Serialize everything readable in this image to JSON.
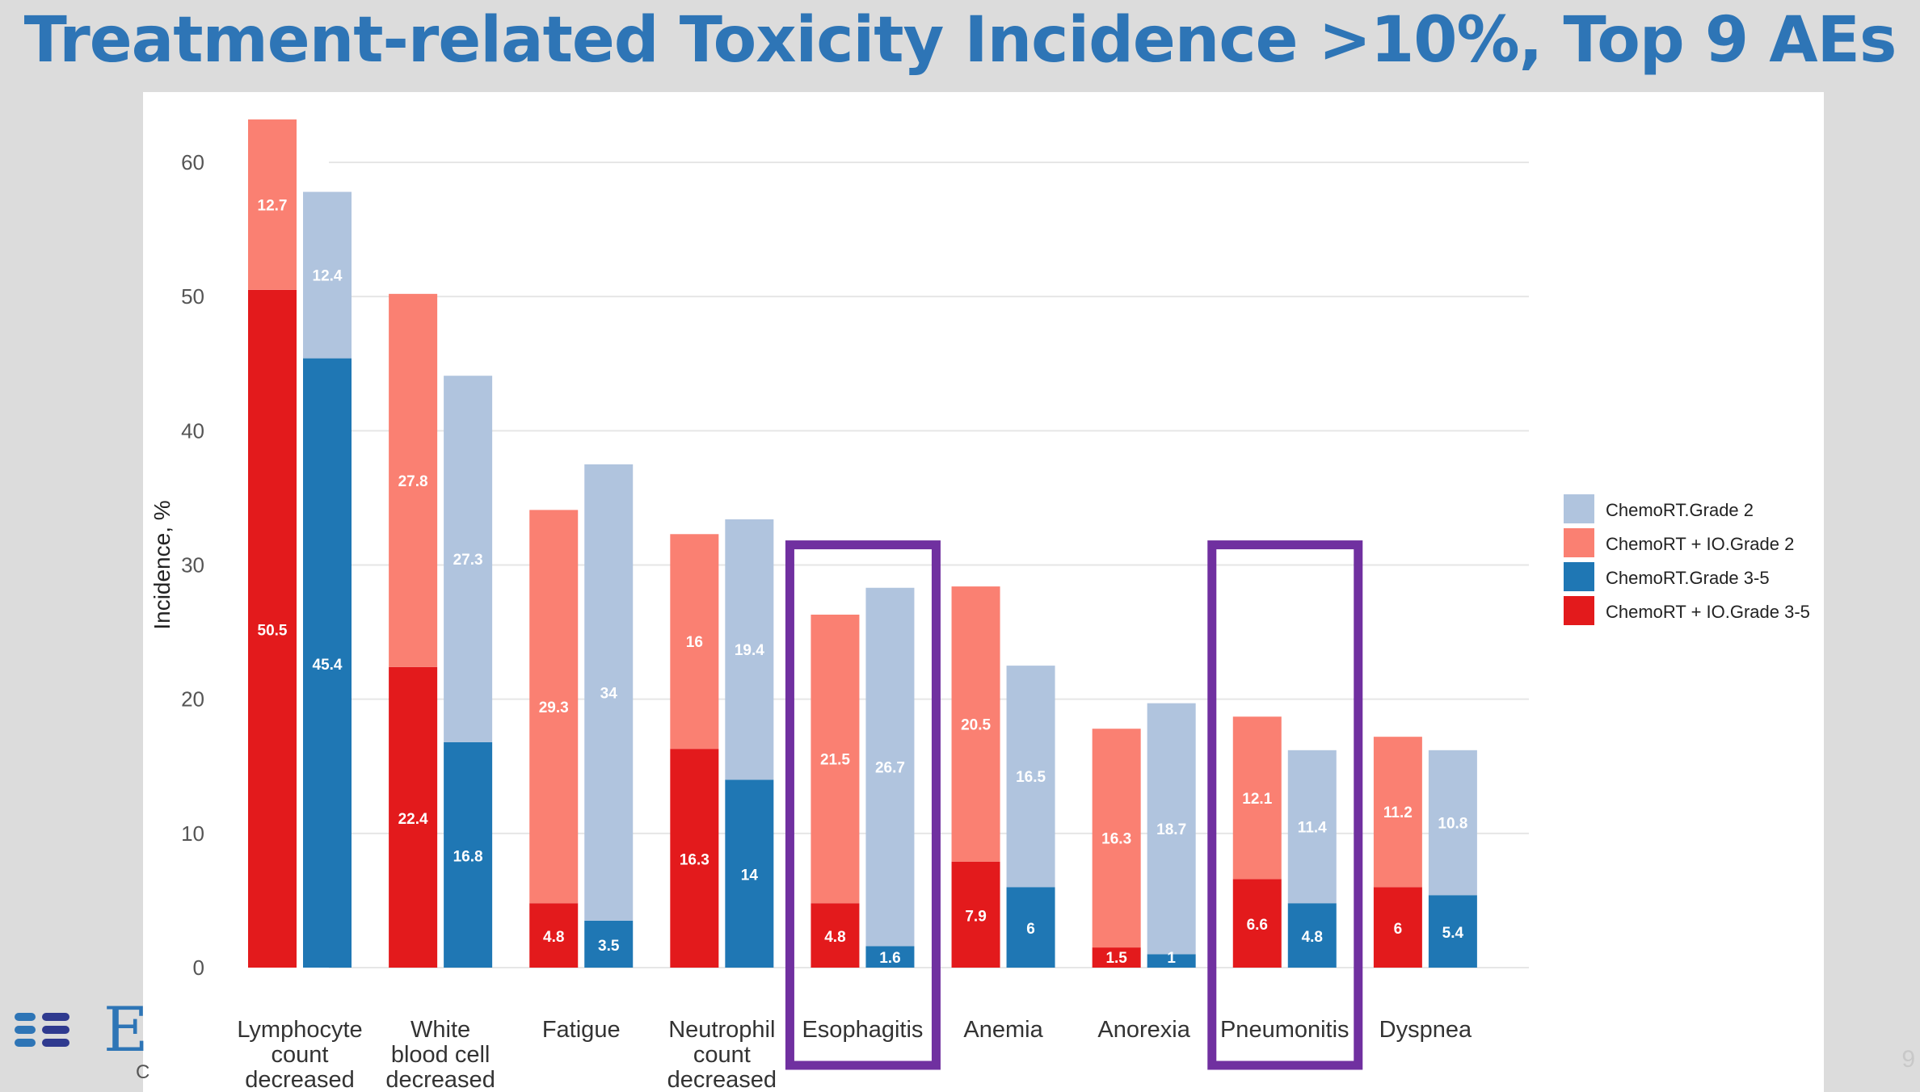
{
  "slide": {
    "title": "Treatment-related Toxicity Incidence >10%, Top 9 AEs",
    "page_number": "9",
    "logo_letter": "E",
    "logo_fragment": "C",
    "colors": {
      "title": "#2e75b6",
      "highlight_box": "#7030a0",
      "logo_bar_light": "#2e75b6",
      "logo_bar_dark": "#2f3a8f"
    }
  },
  "chart_data": {
    "type": "bar",
    "stacked": true,
    "title": "",
    "xlabel": "",
    "ylabel": "Incidence, %",
    "ylim": [
      0,
      65
    ],
    "yticks": [
      0,
      10,
      20,
      30,
      40,
      50,
      60
    ],
    "grid": true,
    "legend_position": "right",
    "categories": [
      "Lymphocyte count decreased",
      "White blood cell decreased",
      "Fatigue",
      "Neutrophil count decreased",
      "Esophagitis",
      "Anemia",
      "Anorexia",
      "Pneumonitis",
      "Dyspnea"
    ],
    "category_label_lines": [
      [
        "Lymphocyte",
        "count",
        "decreased"
      ],
      [
        "White",
        "blood cell",
        "decreased"
      ],
      [
        "Fatigue"
      ],
      [
        "Neutrophil",
        "count",
        "decreased"
      ],
      [
        "Esophagitis"
      ],
      [
        "Anemia"
      ],
      [
        "Anorexia"
      ],
      [
        "Pneumonitis"
      ],
      [
        "Dyspnea"
      ]
    ],
    "highlighted_categories": [
      "Esophagitis",
      "Pneumonitis"
    ],
    "legend": [
      {
        "name": "ChemoRT.Grade 2",
        "color": "#b0c4de"
      },
      {
        "name": "ChemoRT + IO.Grade 2",
        "color": "#fa8072"
      },
      {
        "name": "ChemoRT.Grade 3-5",
        "color": "#1f77b4"
      },
      {
        "name": "ChemoRT + IO.Grade 3-5",
        "color": "#e31a1c"
      }
    ],
    "groups": [
      {
        "name": "ChemoRT + IO",
        "grade3_series": "ChemoRT + IO.Grade 3-5",
        "grade2_series": "ChemoRT + IO.Grade 2"
      },
      {
        "name": "ChemoRT",
        "grade3_series": "ChemoRT.Grade 3-5",
        "grade2_series": "ChemoRT.Grade 2"
      }
    ],
    "series": [
      {
        "name": "ChemoRT + IO.Grade 3-5",
        "values": [
          "50.5",
          "22.4",
          "4.8",
          "16.3",
          "4.8",
          "7.9",
          "1.5",
          "6.6",
          "6"
        ]
      },
      {
        "name": "ChemoRT + IO.Grade 2",
        "values": [
          "12.7",
          "27.8",
          "29.3",
          "16",
          "21.5",
          "20.5",
          "16.3",
          "12.1",
          "11.2"
        ]
      },
      {
        "name": "ChemoRT.Grade 3-5",
        "values": [
          "45.4",
          "16.8",
          "3.5",
          "14",
          "1.6",
          "6",
          "1",
          "4.8",
          "5.4"
        ]
      },
      {
        "name": "ChemoRT.Grade 2",
        "values": [
          "12.4",
          "27.3",
          "34",
          "19.4",
          "26.7",
          "16.5",
          "18.7",
          "11.4",
          "10.8"
        ]
      }
    ]
  }
}
